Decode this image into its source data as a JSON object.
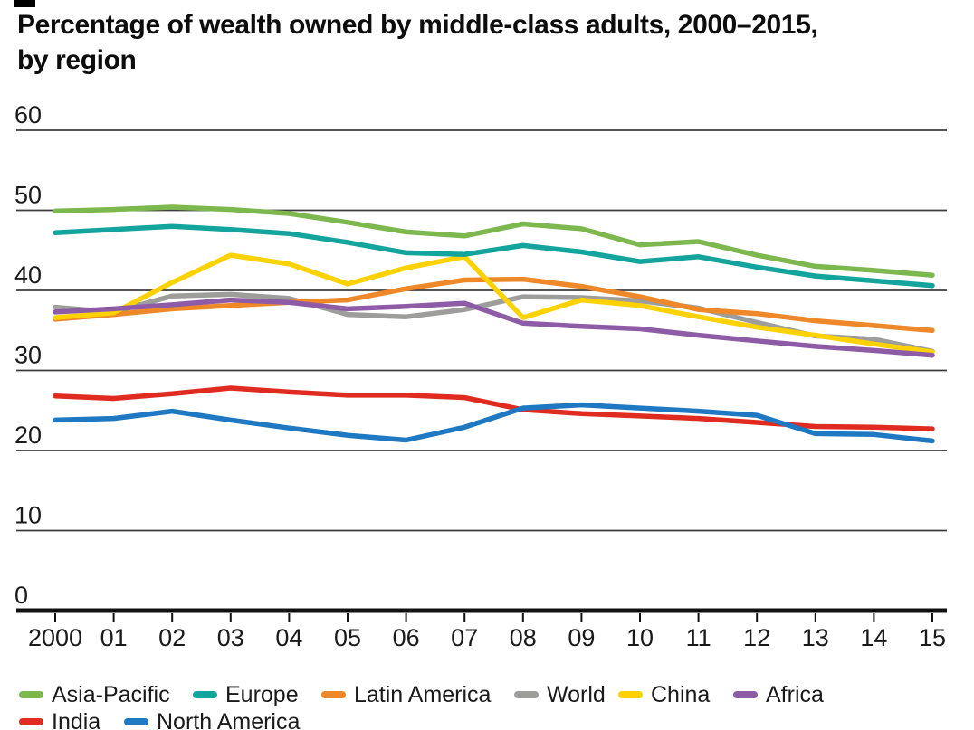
{
  "title": {
    "line1": "Percentage of wealth owned by middle-class adults, 2000–2015,",
    "line2": "by region"
  },
  "chart_data": {
    "type": "line",
    "title": "Percentage of wealth owned by middle-class adults, 2000–2015, by region",
    "x": [
      2000,
      2001,
      2002,
      2003,
      2004,
      2005,
      2006,
      2007,
      2008,
      2009,
      2010,
      2011,
      2012,
      2013,
      2014,
      2015
    ],
    "x_tick_labels": [
      "2000",
      "01",
      "02",
      "03",
      "04",
      "05",
      "06",
      "07",
      "08",
      "09",
      "10",
      "11",
      "12",
      "13",
      "14",
      "15"
    ],
    "xlabel": "",
    "ylabel": "",
    "ylim": [
      0,
      60
    ],
    "y_ticks": [
      0,
      10,
      20,
      30,
      40,
      50,
      60
    ],
    "grid": "horizontal",
    "legend_position": "bottom",
    "series": [
      {
        "name": "Asia-Pacific",
        "color": "#7cb84e",
        "values": [
          49.9,
          50.1,
          50.4,
          50.1,
          49.6,
          48.5,
          47.3,
          46.8,
          48.3,
          47.7,
          45.7,
          46.1,
          44.4,
          43.0,
          42.5,
          41.9
        ]
      },
      {
        "name": "Europe",
        "color": "#12a49d",
        "values": [
          47.2,
          47.6,
          48.0,
          47.6,
          47.1,
          46.0,
          44.7,
          44.5,
          45.6,
          44.8,
          43.6,
          44.2,
          42.9,
          41.8,
          41.2,
          40.6
        ]
      },
      {
        "name": "Latin America",
        "color": "#ef8828",
        "values": [
          36.4,
          37.0,
          37.7,
          38.1,
          38.5,
          38.8,
          40.2,
          41.3,
          41.4,
          40.5,
          39.2,
          37.6,
          37.1,
          36.2,
          35.6,
          35.0
        ]
      },
      {
        "name": "World",
        "color": "#9d9d9c",
        "values": [
          37.9,
          37.3,
          39.3,
          39.5,
          39.0,
          37.0,
          36.7,
          37.6,
          39.2,
          39.1,
          38.7,
          37.8,
          36.0,
          34.3,
          33.9,
          32.4
        ]
      },
      {
        "name": "China",
        "color": "#fcd205",
        "values": [
          36.6,
          37.2,
          41.0,
          44.4,
          43.3,
          40.8,
          42.8,
          44.2,
          36.6,
          38.8,
          38.1,
          36.7,
          35.4,
          34.4,
          33.3,
          32.3
        ]
      },
      {
        "name": "Africa",
        "color": "#8e5ca7",
        "values": [
          37.3,
          37.7,
          38.2,
          38.8,
          38.5,
          37.7,
          38.0,
          38.4,
          35.9,
          35.5,
          35.2,
          34.4,
          33.7,
          33.0,
          32.5,
          31.9
        ]
      },
      {
        "name": "India",
        "color": "#df2b20",
        "values": [
          26.8,
          26.5,
          27.1,
          27.8,
          27.3,
          26.9,
          26.9,
          26.6,
          25.1,
          24.6,
          24.3,
          24.0,
          23.5,
          23.0,
          22.9,
          22.7
        ]
      },
      {
        "name": "North America",
        "color": "#1e78c2",
        "values": [
          23.8,
          24.0,
          24.9,
          23.8,
          22.8,
          21.9,
          21.3,
          22.9,
          25.3,
          25.7,
          25.3,
          24.9,
          24.4,
          22.1,
          22.0,
          21.2
        ]
      }
    ],
    "legend_rows": [
      [
        "Asia-Pacific",
        "Europe",
        "Latin America",
        "World",
        "China",
        "Africa"
      ],
      [
        "India",
        "North America"
      ]
    ]
  },
  "style": {
    "grid_color": "#3d3d3d",
    "axis_color": "#111111",
    "text_color": "#1a1a1a",
    "background": "#ffffff"
  }
}
